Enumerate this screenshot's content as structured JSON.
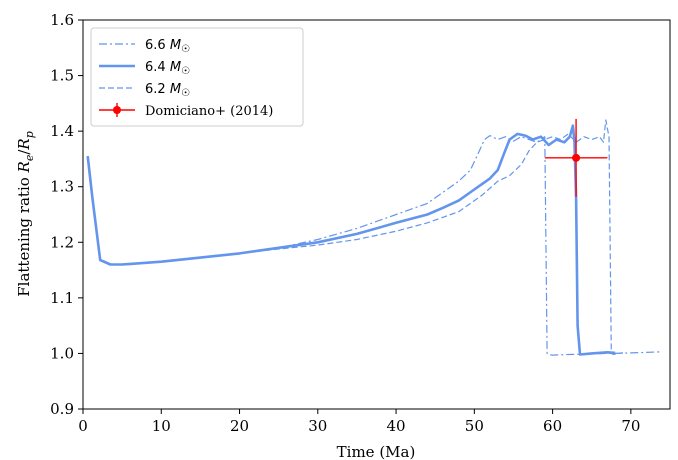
{
  "chart_data": {
    "type": "line",
    "xlabel": "Time (Ma)",
    "ylabel": "Flattening ratio R_e/R_p",
    "xlim": [
      0,
      75
    ],
    "ylim": [
      0.9,
      1.6
    ],
    "xticks": [
      0,
      10,
      20,
      30,
      40,
      50,
      60,
      70
    ],
    "yticks": [
      0.9,
      1.0,
      1.1,
      1.2,
      1.3,
      1.4,
      1.5,
      1.6
    ],
    "xtick_labels": [
      "0",
      "10",
      "20",
      "30",
      "40",
      "50",
      "60",
      "70"
    ],
    "ytick_labels": [
      "0.9",
      "1.0",
      "1.1",
      "1.2",
      "1.3",
      "1.4",
      "1.5",
      "1.6"
    ],
    "legend_position": "top-left",
    "grid": false,
    "series": [
      {
        "name": "6.6 M☉",
        "style": "dashdot",
        "color": "#6495ED",
        "x": [
          0.6,
          1.2,
          2.2,
          3.5,
          5,
          10,
          20,
          25,
          30,
          35,
          40,
          44,
          46,
          48,
          49.5,
          50.5,
          51.3,
          52,
          53,
          54,
          55,
          56,
          57,
          58,
          59,
          59.3,
          59.5,
          60,
          62,
          65,
          67,
          67.2,
          67.4,
          67.6,
          67.8,
          70,
          74
        ],
        "y": [
          1.355,
          1.28,
          1.17,
          1.161,
          1.16,
          1.165,
          1.18,
          1.19,
          1.205,
          1.225,
          1.25,
          1.27,
          1.29,
          1.31,
          1.33,
          1.36,
          1.385,
          1.392,
          1.385,
          1.39,
          1.382,
          1.39,
          1.385,
          1.38,
          1.39,
          1.0,
          0.998,
          0.997,
          0.998,
          0.999,
          1.0,
          1.0,
          1.0,
          1.0,
          1.0,
          1.001,
          1.003
        ]
      },
      {
        "name": "6.4 M☉",
        "style": "solid",
        "color": "#6495ED",
        "x": [
          0.6,
          1.2,
          2.2,
          3.5,
          5,
          10,
          20,
          25,
          30,
          35,
          40,
          44,
          46,
          48,
          50,
          51,
          52,
          53,
          53.8,
          54.5,
          55.5,
          56.5,
          57.5,
          58.5,
          59.5,
          60.5,
          61.5,
          62.2,
          62.6,
          62.8,
          63,
          63.2,
          63.5,
          65,
          67,
          68
        ],
        "y": [
          1.355,
          1.28,
          1.168,
          1.16,
          1.16,
          1.165,
          1.18,
          1.19,
          1.2,
          1.215,
          1.235,
          1.25,
          1.262,
          1.275,
          1.295,
          1.305,
          1.315,
          1.33,
          1.36,
          1.385,
          1.395,
          1.392,
          1.385,
          1.39,
          1.375,
          1.385,
          1.38,
          1.39,
          1.41,
          1.38,
          1.28,
          1.05,
          0.998,
          1.0,
          1.002,
          1.001
        ]
      },
      {
        "name": "6.2 M☉",
        "style": "dashed",
        "color": "#6495ED",
        "x": [
          0.6,
          1.2,
          2.2,
          3.5,
          5,
          10,
          20,
          25,
          30,
          35,
          40,
          44,
          48,
          51,
          53,
          54.5,
          56,
          57,
          58,
          59,
          60,
          61,
          62,
          63,
          64,
          65,
          66,
          66.5,
          66.8,
          67.2,
          67.5,
          67.8,
          68.2,
          69
        ],
        "y": [
          1.355,
          1.28,
          1.17,
          1.161,
          1.16,
          1.165,
          1.18,
          1.188,
          1.195,
          1.205,
          1.22,
          1.235,
          1.255,
          1.285,
          1.31,
          1.32,
          1.34,
          1.365,
          1.38,
          1.385,
          1.39,
          1.385,
          1.395,
          1.38,
          1.39,
          1.385,
          1.39,
          1.38,
          1.42,
          1.39,
          1.0,
          0.998,
          1.0,
          1.001
        ]
      }
    ],
    "observation": {
      "name": "Domiciano+ (2014)",
      "color": "#ff0000",
      "x": 63,
      "y": 1.352,
      "xerr": 4,
      "yerr": 0.07
    }
  }
}
